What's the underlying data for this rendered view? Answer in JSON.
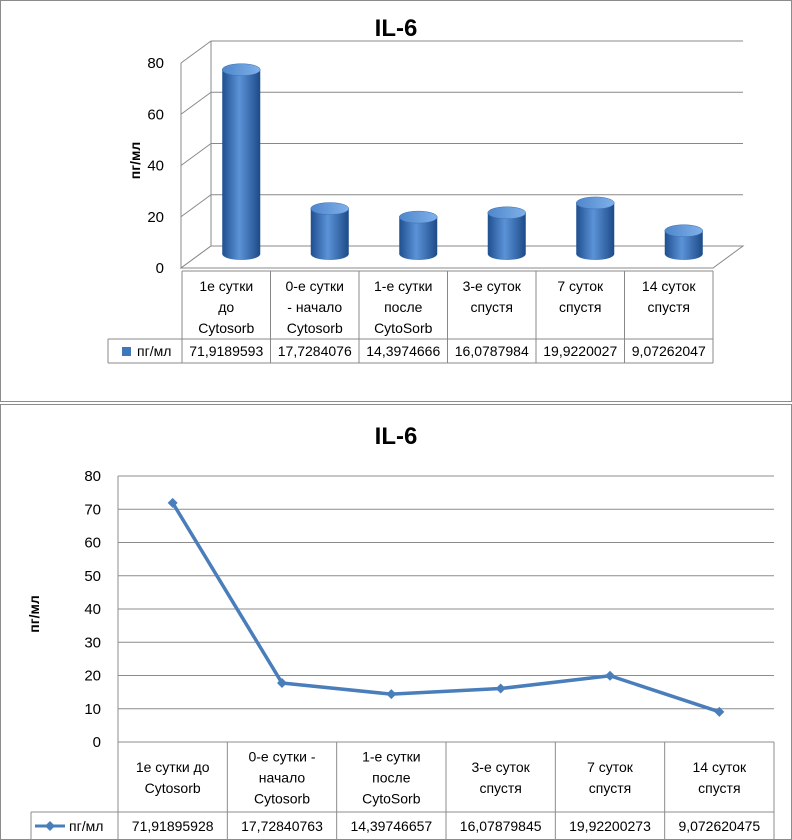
{
  "chart_data": [
    {
      "type": "bar",
      "title": "IL-6",
      "ylabel": "пг/мл",
      "xlabel": "",
      "ylim": [
        0,
        80
      ],
      "yticks": [
        "0",
        "20",
        "40",
        "60",
        "80"
      ],
      "categories": [
        [
          "1е сутки",
          "до",
          "Cytosorb"
        ],
        [
          "0-е сутки",
          "- начало",
          "Cytosorb"
        ],
        [
          "1-е сутки",
          "после",
          "CytoSorb"
        ],
        [
          "3-е суток",
          "спустя"
        ],
        [
          "7 суток",
          "спустя"
        ],
        [
          "14 суток",
          "спустя"
        ]
      ],
      "series": [
        {
          "name": "пг/мл",
          "values": [
            71.9189593,
            17.7284076,
            14.3974666,
            16.0787984,
            19.9220027,
            9.07262047
          ],
          "value_labels": [
            "71,9189593",
            "17,7284076",
            "14,3974666",
            "16,0787984",
            "19,9220027",
            "9,07262047"
          ]
        }
      ],
      "grid": true,
      "data_table": true,
      "color": "#3f77bd"
    },
    {
      "type": "line",
      "title": "IL-6",
      "ylabel": "пг/мл",
      "xlabel": "",
      "ylim": [
        0,
        80
      ],
      "yticks": [
        "0",
        "10",
        "20",
        "30",
        "40",
        "50",
        "60",
        "70",
        "80"
      ],
      "categories": [
        [
          "1е сутки до",
          "Cytosorb"
        ],
        [
          "0-е сутки -",
          "начало",
          "Cytosorb"
        ],
        [
          "1-е сутки",
          "после",
          "CytoSorb"
        ],
        [
          "3-е суток",
          "спустя"
        ],
        [
          "7 суток",
          "спустя"
        ],
        [
          "14 суток",
          "спустя"
        ]
      ],
      "series": [
        {
          "name": "пг/мл",
          "values": [
            71.91895928,
            17.72840763,
            14.39746657,
            16.07879845,
            19.92200273,
            9.072620475
          ],
          "value_labels": [
            "71,91895928",
            "17,72840763",
            "14,39746657",
            "16,07879845",
            "19,92200273",
            "9,072620475"
          ]
        }
      ],
      "grid": true,
      "data_table": true,
      "color": "#4a7ebb"
    }
  ]
}
